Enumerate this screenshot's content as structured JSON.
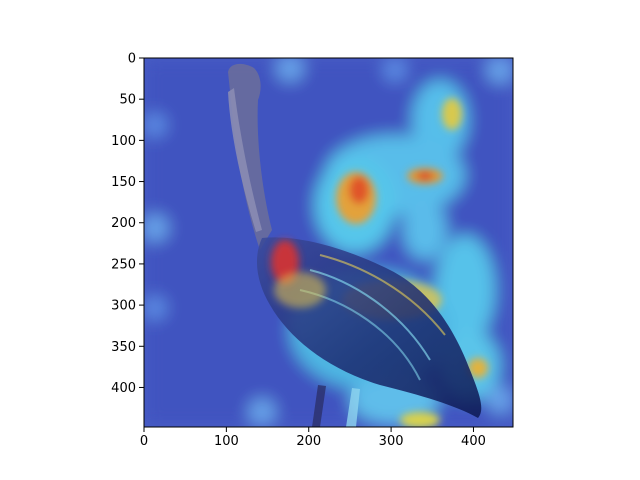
{
  "figure": {
    "type": "image-overlay",
    "description_free": true,
    "x_axis": {
      "ticks": [
        0,
        100,
        200,
        300,
        400
      ],
      "range": [
        0,
        448
      ]
    },
    "y_axis": {
      "ticks": [
        0,
        50,
        100,
        150,
        200,
        250,
        300,
        350,
        400
      ],
      "range": [
        0,
        448
      ],
      "inverted": true
    },
    "colors": {
      "frame": "#000000",
      "background": "#ffffff",
      "cold": "#3a4fd0",
      "cyan": "#58d3f0",
      "yellow": "#e7d44c",
      "hot": "#e0302a"
    }
  }
}
